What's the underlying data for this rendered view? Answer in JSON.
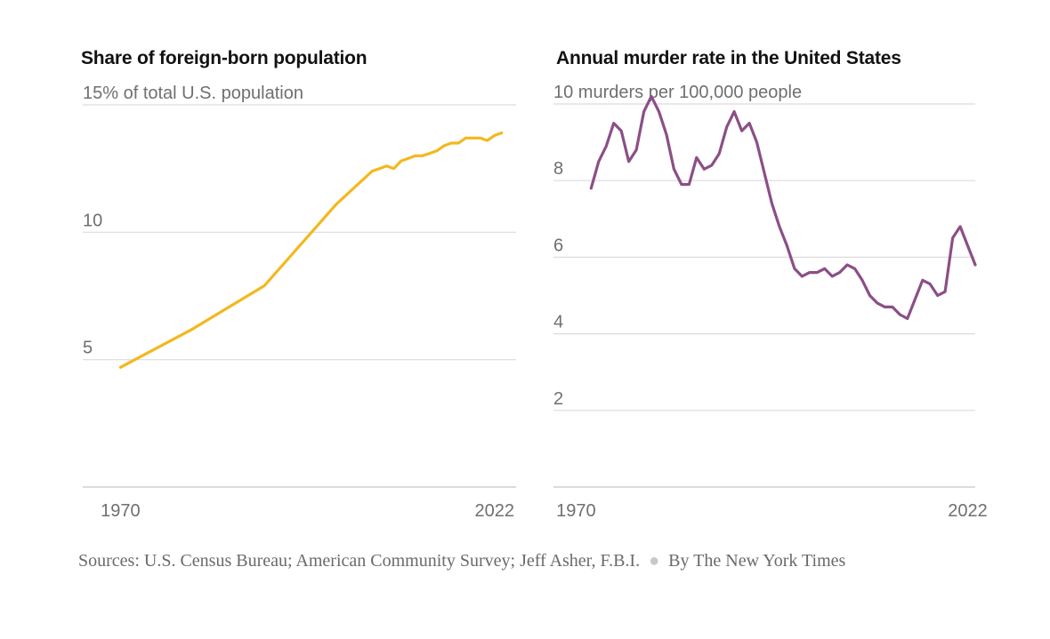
{
  "colors": {
    "series_a": "#f3b81f",
    "series_b": "#8b4f86",
    "text": "#121212",
    "muted": "#6f6f6f"
  },
  "footer": {
    "sources": "Sources: U.S. Census Bureau; American Community Survey; Jeff Asher, F.B.I.",
    "byline": "By The New York Times"
  },
  "chart_data": [
    {
      "type": "line",
      "title": "Share of foreign-born population",
      "subtitle": "15% of total U.S. population",
      "xlabel": "",
      "ylabel": "",
      "xlim": [
        1965,
        2025
      ],
      "ylim": [
        0,
        15
      ],
      "yticks": [
        5,
        10,
        15
      ],
      "ytick_labels": [
        "5",
        "10",
        "15% of total U.S. population"
      ],
      "xticks": [
        1970,
        2022
      ],
      "xtick_labels": [
        "1970",
        "2022"
      ],
      "grid": true,
      "series": [
        {
          "color": "#f3b81f",
          "x": [
            1970,
            1980,
            1990,
            2000,
            2005,
            2006,
            2007,
            2008,
            2009,
            2010,
            2011,
            2012,
            2013,
            2014,
            2015,
            2016,
            2017,
            2018,
            2019,
            2020,
            2021,
            2022,
            2023
          ],
          "y": [
            4.7,
            6.2,
            7.9,
            11.1,
            12.4,
            12.5,
            12.6,
            12.5,
            12.8,
            12.9,
            13.0,
            13.0,
            13.1,
            13.2,
            13.4,
            13.5,
            13.5,
            13.7,
            13.7,
            13.7,
            13.6,
            13.8,
            13.9
          ]
        }
      ]
    },
    {
      "type": "line",
      "title": "Annual murder rate in the United States",
      "subtitle": "10 murders per 100,000 people",
      "xlabel": "",
      "ylabel": "",
      "xlim": [
        1967,
        2023
      ],
      "ylim": [
        0,
        10
      ],
      "yticks": [
        2,
        4,
        6,
        8,
        10
      ],
      "ytick_labels": [
        "2",
        "4",
        "6",
        "8",
        "10 murders per 100,000 people"
      ],
      "xticks": [
        1970,
        2022
      ],
      "xtick_labels": [
        "1970",
        "2022"
      ],
      "grid": true,
      "series": [
        {
          "color": "#8b4f86",
          "x": [
            1972,
            1973,
            1974,
            1975,
            1976,
            1977,
            1978,
            1979,
            1980,
            1981,
            1982,
            1983,
            1984,
            1985,
            1986,
            1987,
            1988,
            1989,
            1990,
            1991,
            1992,
            1993,
            1994,
            1995,
            1996,
            1997,
            1998,
            1999,
            2000,
            2001,
            2002,
            2003,
            2004,
            2005,
            2006,
            2007,
            2008,
            2009,
            2010,
            2011,
            2012,
            2013,
            2014,
            2015,
            2016,
            2017,
            2018,
            2019,
            2020,
            2021,
            2022,
            2023
          ],
          "y": [
            7.8,
            8.5,
            8.9,
            9.5,
            9.3,
            8.5,
            8.8,
            9.8,
            10.2,
            9.8,
            9.2,
            8.3,
            7.9,
            7.9,
            8.6,
            8.3,
            8.4,
            8.7,
            9.4,
            9.8,
            9.3,
            9.5,
            9.0,
            8.2,
            7.4,
            6.8,
            6.3,
            5.7,
            5.5,
            5.6,
            5.6,
            5.7,
            5.5,
            5.6,
            5.8,
            5.7,
            5.4,
            5.0,
            4.8,
            4.7,
            4.7,
            4.5,
            4.4,
            4.9,
            5.4,
            5.3,
            5.0,
            5.1,
            6.5,
            6.8,
            6.3,
            5.8
          ]
        }
      ]
    }
  ]
}
